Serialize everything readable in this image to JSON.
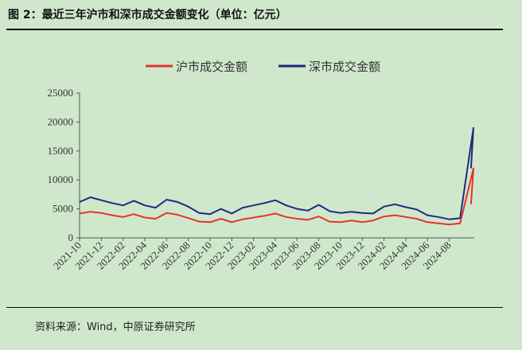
{
  "figure": {
    "title": "图 2：最近三年沪市和深市成交金额变化（单位：亿元）",
    "source": "资料来源：Wind，中原证券研究所"
  },
  "colors": {
    "background": "#cfe8cc",
    "sh": "#e8312f",
    "sz": "#1f2a80"
  },
  "chart_data": {
    "type": "line",
    "title": "",
    "xlabel": "",
    "ylabel": "",
    "ylim": [
      0,
      25000
    ],
    "yticks": [
      "0",
      "5000",
      "10000",
      "15000",
      "20000",
      "25000"
    ],
    "xticks": [
      "2021-10",
      "2021-12",
      "2022-02",
      "2022-04",
      "2022-06",
      "2022-08",
      "2022-10",
      "2022-12",
      "2023-02",
      "2023-04",
      "2023-06",
      "2023-08",
      "2023-10",
      "2023-12",
      "2024-02",
      "2024-04",
      "2024-06",
      "2024-08"
    ],
    "legend_position": "top",
    "grid": false,
    "x": [
      "2021-10",
      "2021-11",
      "2021-12",
      "2022-01",
      "2022-02",
      "2022-03",
      "2022-04",
      "2022-05",
      "2022-06",
      "2022-07",
      "2022-08",
      "2022-09",
      "2022-10",
      "2022-11",
      "2022-12",
      "2023-01",
      "2023-02",
      "2023-03",
      "2023-04",
      "2023-05",
      "2023-06",
      "2023-07",
      "2023-08",
      "2023-09",
      "2023-10",
      "2023-11",
      "2023-12",
      "2024-01",
      "2024-02",
      "2024-03",
      "2024-04",
      "2024-05",
      "2024-06",
      "2024-07",
      "2024-08",
      "2024-09",
      "2024-10-08",
      "2024-10"
    ],
    "series": [
      {
        "name": "沪市成交金额",
        "color": "#e8312f",
        "values": [
          4200,
          4500,
          4300,
          3900,
          3600,
          4100,
          3500,
          3300,
          4300,
          4000,
          3400,
          2800,
          2700,
          3300,
          2700,
          3200,
          3500,
          3800,
          4200,
          3600,
          3300,
          3100,
          3700,
          2800,
          2700,
          3000,
          2700,
          3000,
          3700,
          3900,
          3600,
          3300,
          2700,
          2500,
          2300,
          2500,
          12000,
          5800
        ]
      },
      {
        "name": "深市成交金额",
        "color": "#1f2a80",
        "values": [
          6200,
          7000,
          6500,
          6000,
          5600,
          6400,
          5600,
          5200,
          6600,
          6200,
          5400,
          4300,
          4100,
          5000,
          4200,
          5200,
          5600,
          6000,
          6500,
          5600,
          5000,
          4700,
          5700,
          4600,
          4300,
          4500,
          4300,
          4200,
          5400,
          5800,
          5300,
          4900,
          3900,
          3600,
          3200,
          3400,
          19000,
          12000
        ]
      }
    ]
  }
}
